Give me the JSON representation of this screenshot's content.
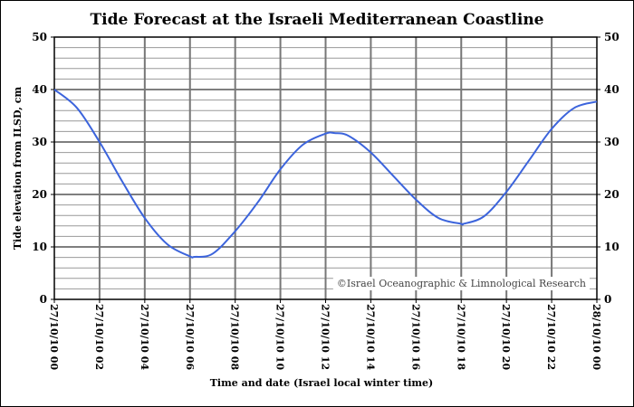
{
  "chart_data": {
    "type": "line",
    "title": "Tide Forecast at the Israeli Mediterranean Coastline",
    "xlabel": "Time and date (Israel local winter time)",
    "ylabel": "Tide elevation from ILSD, cm",
    "watermark": "©Israel Oceanographic & Limnological Research",
    "ylim": [
      0,
      50
    ],
    "yticks": [
      0,
      10,
      20,
      30,
      40,
      50
    ],
    "x_tick_labels": [
      "27/10/10 00",
      "27/10/10 02",
      "27/10/10 04",
      "27/10/10 06",
      "27/10/10 08",
      "27/10/10 10",
      "27/10/10 12",
      "27/10/10 14",
      "27/10/10 16",
      "27/10/10 18",
      "27/10/10 20",
      "27/10/10 22",
      "28/10/10 00"
    ],
    "xlim_hours": [
      0,
      24
    ],
    "grid": true,
    "line_color": "#3c64dc",
    "series": [
      {
        "x_hours": [
          0,
          1,
          2,
          3,
          4,
          5,
          6,
          6.2,
          7,
          8,
          9,
          10,
          11,
          12,
          12.4,
          13,
          14,
          15,
          16,
          17,
          18,
          18.1,
          19,
          20,
          21,
          22,
          23,
          24
        ],
        "values": [
          40,
          36.5,
          30,
          22.5,
          15.5,
          10.5,
          8.2,
          8.1,
          8.7,
          13,
          18.5,
          24.8,
          29.5,
          31.6,
          31.7,
          31.2,
          28,
          23.5,
          19,
          15.5,
          14.4,
          14.4,
          15.8,
          20.5,
          26.5,
          32.5,
          36.5,
          37.7
        ]
      }
    ]
  }
}
